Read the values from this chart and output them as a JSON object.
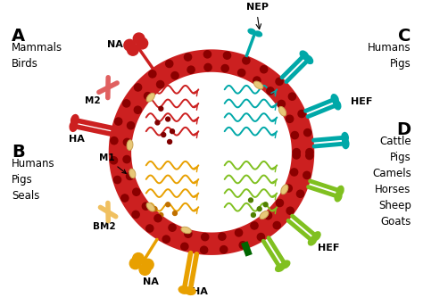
{
  "bg_color": "#ffffff",
  "label_A": "A",
  "label_A_hosts": "Mammals\nBirds",
  "label_B": "B",
  "label_B_hosts": "Humans\nPigs\nSeals",
  "label_C": "C",
  "label_C_hosts": "Humans\nPigs",
  "label_D": "D",
  "label_D_hosts": "Cattle\nPigs\nCamels\nHorses\nSheep\nGoats",
  "color_A": "#cc2020",
  "color_A_light": "#e06060",
  "color_B": "#e8a000",
  "color_C": "#00a8a8",
  "color_D": "#80c020",
  "color_ring": "#cc2020",
  "color_dot_outer": "#aa1010",
  "color_dot_inner": "#aa1010",
  "color_tan": "#e8c878",
  "color_tan_edge": "#c8a050",
  "fig_w": 4.74,
  "fig_h": 3.43
}
